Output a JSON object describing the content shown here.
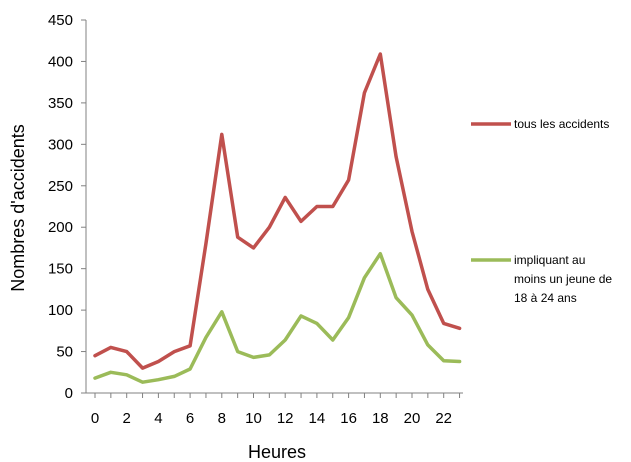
{
  "chart_data": {
    "type": "line",
    "title": "",
    "xlabel": "Heures",
    "ylabel": "Nombres d'accidents",
    "ylim": [
      0,
      450
    ],
    "yticks": [
      0,
      50,
      100,
      150,
      200,
      250,
      300,
      350,
      400,
      450
    ],
    "xticks": [
      0,
      2,
      4,
      6,
      8,
      10,
      12,
      14,
      16,
      18,
      20,
      22
    ],
    "xlim": [
      0,
      23
    ],
    "grid": false,
    "legend": "right",
    "x": [
      0,
      1,
      2,
      3,
      4,
      5,
      6,
      7,
      8,
      9,
      10,
      11,
      12,
      13,
      14,
      15,
      16,
      17,
      18,
      19,
      20,
      21,
      22,
      23
    ],
    "series": [
      {
        "name": "tous les accidents",
        "legend_lines": [
          "tous les accidents"
        ],
        "color": "#c0504d",
        "values": [
          45,
          55,
          50,
          30,
          38,
          50,
          57,
          180,
          312,
          188,
          175,
          200,
          236,
          207,
          225,
          225,
          257,
          362,
          409,
          285,
          195,
          125,
          84,
          78
        ]
      },
      {
        "name": "impliquant au moins un jeune de 18 à 24 ans",
        "legend_lines": [
          " impliquant au",
          "moins un jeune de",
          "18 à 24 ans"
        ],
        "color": "#9bbb59",
        "values": [
          18,
          25,
          22,
          13,
          16,
          20,
          29,
          67,
          98,
          50,
          43,
          46,
          64,
          93,
          84,
          64,
          91,
          139,
          168,
          115,
          94,
          58,
          39,
          38
        ]
      }
    ]
  }
}
